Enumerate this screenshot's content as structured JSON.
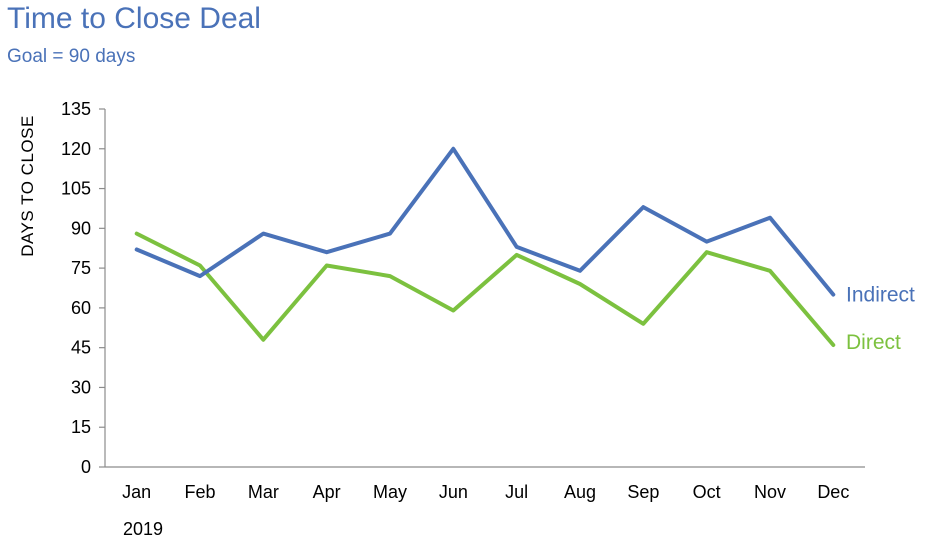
{
  "title": "Time to Close Deal",
  "subtitle": "Goal = 90 days",
  "colors": {
    "indirect": "#4a72b8",
    "direct": "#7cc13f",
    "title": "#4a72b8"
  },
  "chart_data": {
    "type": "line",
    "title": "Time to Close Deal",
    "subtitle": "Goal = 90 days",
    "ylabel": "DAYS TO CLOSE",
    "xlabel": "",
    "year_label": "2019",
    "categories": [
      "Jan",
      "Feb",
      "Mar",
      "Apr",
      "May",
      "Jun",
      "Jul",
      "Aug",
      "Sep",
      "Oct",
      "Nov",
      "Dec"
    ],
    "yticks": [
      "0",
      "15",
      "30",
      "45",
      "60",
      "75",
      "90",
      "105",
      "120",
      "135"
    ],
    "ylim": [
      0,
      135
    ],
    "grid": false,
    "legend": "end-of-line labels, right",
    "series": [
      {
        "name": "Indirect",
        "color": "#4a72b8",
        "values": [
          82,
          72,
          88,
          81,
          88,
          120,
          83,
          74,
          98,
          85,
          94,
          65
        ]
      },
      {
        "name": "Direct",
        "color": "#7cc13f",
        "values": [
          88,
          76,
          48,
          76,
          72,
          59,
          80,
          69,
          54,
          81,
          74,
          46
        ]
      }
    ]
  }
}
